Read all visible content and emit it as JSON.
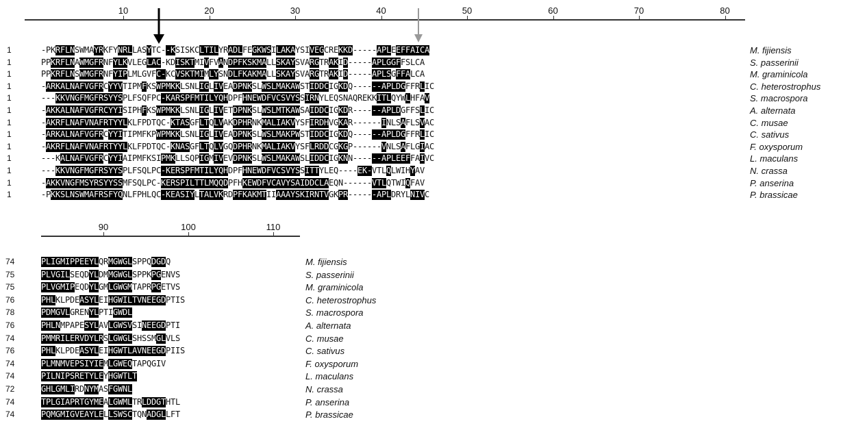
{
  "block1": {
    "ticks": [
      "10",
      "20",
      "30",
      "40",
      "50",
      "60",
      "70",
      "80"
    ],
    "rows": [
      {
        "num": "1",
        "seq": "-PKRFLNSWMAYRKFYNRLLASYTC--KSISKCLTILYRADLFEGKWSILAKAYSIVEGCREKKD-----APLEEFFAICA",
        "hl": [
          3,
          4,
          5,
          6,
          11,
          12,
          16,
          17,
          18,
          22,
          26,
          27,
          33,
          34,
          35,
          36,
          39,
          40,
          41,
          44,
          45,
          46,
          47,
          49,
          50,
          51,
          52,
          56,
          57,
          58,
          62,
          63,
          64,
          70,
          71,
          72,
          74,
          75,
          76,
          77,
          78,
          79,
          80
        ],
        "species": "M. fijiensis"
      },
      {
        "num": "1",
        "seq": "PPKRFLNAWMGFRNFYLKVLEGLAC-KDISKTMIVFVANDPFKSKMALLSKAYSVARGTRAKID-----APLGGFFSLCA",
        "hl": [
          2,
          3,
          4,
          5,
          6,
          8,
          9,
          10,
          11,
          12,
          15,
          16,
          17,
          22,
          23,
          24,
          28,
          29,
          30,
          31,
          34,
          37,
          39,
          40,
          41,
          42,
          43,
          44,
          45,
          46,
          49,
          50,
          51,
          52,
          56,
          57,
          60,
          61,
          63,
          69,
          70,
          71,
          72,
          73,
          74
        ],
        "species": "S. passerinii"
      },
      {
        "num": "1",
        "seq": "PPKRFLNSWMGFRNFYIPLMLGVFC-KCVSKTMIMLYSNDLFKAKMALLSKAYSVARGTRAKID-----APLSGFFALCA",
        "hl": [
          2,
          3,
          4,
          5,
          6,
          8,
          9,
          10,
          11,
          12,
          15,
          16,
          17,
          24,
          25,
          28,
          29,
          30,
          31,
          32,
          33,
          35,
          36,
          39,
          40,
          41,
          42,
          43,
          44,
          45,
          46,
          49,
          50,
          51,
          52,
          56,
          57,
          60,
          61,
          63,
          69,
          70,
          71,
          72,
          74,
          75,
          76
        ],
        "species": "M. graminicola"
      },
      {
        "num": "1",
        "seq": "-ARKALNAFVGFRCYYVTIPMFKSWPMKKLSNLIGLIVEADPNKSLWSLMAKAWSTIDDCIGKDQ------APLDGFFRLIC",
        "hl": [
          1,
          2,
          3,
          4,
          5,
          6,
          7,
          8,
          9,
          10,
          11,
          12,
          14,
          15,
          16,
          21,
          24,
          25,
          26,
          27,
          28,
          33,
          34,
          36,
          37,
          40,
          41,
          42,
          43,
          46,
          47,
          48,
          49,
          50,
          51,
          52,
          53,
          56,
          57,
          58,
          59,
          62,
          63,
          69,
          70,
          71,
          72,
          73,
          74,
          75,
          79
        ],
        "species": "C. heterostrophus"
      },
      {
        "num": "1",
        "seq": "---KKVNGFMGFRSYYSPLFSQFPC-KARSPFMTILYQHDPFHNEWDFVCSVYSSIRNYLEQSNAQREKKITLQYWLHFAV",
        "hl": [
          3,
          4,
          5,
          6,
          7,
          8,
          9,
          10,
          11,
          12,
          13,
          14,
          15,
          16,
          25,
          26,
          27,
          28,
          29,
          30,
          31,
          32,
          33,
          34,
          35,
          36,
          37,
          38,
          42,
          43,
          44,
          45,
          46,
          47,
          48,
          49,
          50,
          51,
          52,
          53,
          55,
          56,
          57,
          70,
          71,
          72,
          76,
          80
        ],
        "species": "S. macrospora"
      },
      {
        "num": "1",
        "seq": "-AKKALNAFVGFRCYYISIPHFKSWPMKKLSNLIGLIVETDPNKSLWSLMTKAWSAIDDCIGKDR------APLDGFFSLIC",
        "hl": [
          1,
          2,
          3,
          4,
          5,
          6,
          7,
          8,
          9,
          10,
          11,
          12,
          13,
          14,
          15,
          16,
          21,
          24,
          25,
          26,
          27,
          28,
          33,
          34,
          36,
          37,
          40,
          41,
          42,
          43,
          46,
          47,
          48,
          49,
          50,
          51,
          52,
          53,
          56,
          57,
          58,
          59,
          62,
          63,
          69,
          70,
          71,
          72,
          73,
          74,
          79
        ],
        "species": "A. alternata"
      },
      {
        "num": "1",
        "seq": "-AKRFLNAFVNAFRTYYLKLFPDTQC-KTASGFLTQLVAKDPHRNKMALIAKVYSFIRDHVGKAR------INLSAFLSVAC",
        "hl": [
          1,
          2,
          3,
          4,
          5,
          6,
          7,
          8,
          9,
          10,
          11,
          12,
          13,
          14,
          15,
          16,
          17,
          27,
          28,
          29,
          30,
          33,
          34,
          36,
          37,
          40,
          41,
          42,
          43,
          46,
          47,
          48,
          49,
          50,
          51,
          52,
          56,
          57,
          58,
          59,
          62,
          63,
          71,
          75,
          79
        ],
        "species": "C. musae"
      },
      {
        "num": "1",
        "seq": "-ARKALNAFVGFRCYYITIPMFKPWPMKKLSNLIGLIVEADPNKSLWSLMAKPWSTIDDCIGKDQ------APLDGFFRLIC",
        "hl": [
          1,
          2,
          3,
          4,
          5,
          6,
          7,
          8,
          9,
          10,
          11,
          12,
          14,
          15,
          16,
          24,
          25,
          26,
          27,
          28,
          33,
          34,
          36,
          37,
          40,
          41,
          42,
          43,
          46,
          47,
          48,
          49,
          50,
          51,
          52,
          53,
          56,
          57,
          58,
          59,
          62,
          63,
          69,
          70,
          71,
          72,
          73,
          74,
          75,
          79
        ],
        "species": "C. sativus"
      },
      {
        "num": "1",
        "seq": "-AKRFLNAFVNAFRTYYLKLFPDTQC-KNASGFLTQLVGQDPHRNKMALIAKVYSFLRDDCGKGP------VNLSAFLGIAC",
        "hl": [
          1,
          2,
          3,
          4,
          5,
          6,
          7,
          8,
          9,
          10,
          11,
          12,
          13,
          14,
          15,
          16,
          17,
          27,
          28,
          29,
          30,
          33,
          34,
          36,
          37,
          40,
          41,
          42,
          43,
          46,
          47,
          48,
          49,
          50,
          51,
          52,
          56,
          57,
          58,
          59,
          62,
          63,
          71,
          75,
          79
        ],
        "species": "F. oxysporum"
      },
      {
        "num": "1",
        "seq": "---KALNAFVGFRCYYIAIPMFKSIPMKLLSQPIGMIVEVDPNKSLWSLMAKAWSLIDDCIGKNN------APLEEFFAIVC",
        "hl": [
          4,
          5,
          6,
          7,
          8,
          9,
          10,
          11,
          12,
          14,
          15,
          16,
          25,
          26,
          27,
          33,
          34,
          36,
          37,
          40,
          41,
          42,
          43,
          46,
          47,
          48,
          49,
          50,
          51,
          52,
          53,
          56,
          57,
          58,
          59,
          62,
          63,
          69,
          70,
          71,
          72,
          73,
          74,
          75,
          76,
          79
        ],
        "species": "L. maculans"
      },
      {
        "num": "1",
        "seq": "---KKVNGFMGFRSYYSPLFSQLPC-KERSPFMTILYQHDPFHNEWDFVCSVYSSITTYLEQ----EK-VTLQLWIHYAV",
        "hl": [
          3,
          4,
          5,
          6,
          7,
          8,
          9,
          10,
          11,
          12,
          13,
          14,
          15,
          16,
          25,
          26,
          27,
          28,
          29,
          30,
          31,
          32,
          33,
          34,
          35,
          36,
          37,
          38,
          42,
          43,
          44,
          45,
          46,
          47,
          48,
          49,
          50,
          51,
          52,
          53,
          55,
          56,
          57,
          66,
          67,
          68,
          72,
          77
        ],
        "species": "N. crassa"
      },
      {
        "num": "1",
        "seq": "-AKKVNGFMSYRSYYSSMFSQLPC-KERSPILTTLMQQDPFHKEWDFVCAVYSAIDDCLAEQN------VTLQTWIQFAV",
        "hl": [
          1,
          2,
          3,
          4,
          5,
          6,
          7,
          8,
          9,
          10,
          11,
          12,
          13,
          14,
          15,
          16,
          25,
          26,
          27,
          28,
          29,
          30,
          31,
          32,
          33,
          34,
          35,
          36,
          37,
          38,
          42,
          43,
          44,
          45,
          46,
          47,
          48,
          49,
          50,
          51,
          52,
          53,
          54,
          55,
          56,
          57,
          58,
          59,
          69,
          70,
          71,
          76
        ],
        "species": "P. anserina"
      },
      {
        "num": "1",
        "seq": "-PKKSLNSWMAFRSFYQNLFPHLQC-KEASIYLTALVKRDPFKAKMTIIAAAYSKIRNTVGKPR------APLDRYLNIVC",
        "hl": [
          2,
          3,
          4,
          5,
          6,
          7,
          8,
          9,
          10,
          11,
          12,
          13,
          14,
          15,
          16,
          25,
          26,
          27,
          28,
          29,
          30,
          31,
          33,
          34,
          35,
          36,
          37,
          40,
          41,
          42,
          43,
          44,
          45,
          46,
          49,
          50,
          51,
          52,
          53,
          54,
          55,
          56,
          57,
          58,
          59,
          62,
          63,
          69,
          70,
          71,
          72,
          77,
          78,
          79
        ],
        "species": "P. brassicae"
      }
    ]
  },
  "block2": {
    "ticks": [
      "90",
      "100",
      "110"
    ],
    "rows": [
      {
        "num": "74",
        "seq": "PLIGMIPPEEYLQRMGWGLSPPQDGDQ",
        "hl": [
          0,
          1,
          2,
          3,
          4,
          5,
          6,
          7,
          8,
          9,
          10,
          11,
          14,
          15,
          16,
          17,
          18,
          23,
          24,
          25
        ],
        "species": "M. fijiensis"
      },
      {
        "num": "75",
        "seq": "PLVGILSEQDYLDMMGWGLSPPKPGENVS",
        "hl": [
          0,
          1,
          2,
          3,
          4,
          5,
          10,
          11,
          14,
          15,
          16,
          17,
          18,
          23,
          24
        ],
        "species": "S. passerinii"
      },
      {
        "num": "75",
        "seq": "PLVGMIPEQDYLGMLGWGMTAPRPGETVS",
        "hl": [
          0,
          1,
          2,
          3,
          4,
          5,
          6,
          10,
          11,
          14,
          15,
          16,
          17,
          18,
          23,
          24
        ],
        "species": "M. graminicola"
      },
      {
        "num": "76",
        "seq": "PHLKLPDEASYLEIHGWILTVNEEGDPTIS",
        "hl": [
          0,
          1,
          2,
          8,
          9,
          10,
          11,
          14,
          15,
          16,
          17,
          18,
          19,
          20,
          21,
          22,
          23,
          24,
          25
        ],
        "species": "C. heterostrophus"
      },
      {
        "num": "78",
        "seq": "PDMGVLGRENYLPTIGWDL",
        "hl": [
          0,
          1,
          2,
          3,
          4,
          5,
          10,
          11,
          15,
          16,
          17,
          18
        ],
        "species": "S. macrospora"
      },
      {
        "num": "76",
        "seq": "PHLNMPAPESYLAVLGWSVSINEEGDPTI",
        "hl": [
          0,
          1,
          2,
          3,
          9,
          10,
          11,
          14,
          15,
          16,
          17,
          18,
          21,
          22,
          23,
          24,
          25
        ],
        "species": "A. alternata"
      },
      {
        "num": "74",
        "seq": "PMMRILERVDYLRSLGWGLSHSSMGLVLS",
        "hl": [
          0,
          1,
          2,
          3,
          4,
          5,
          6,
          7,
          8,
          9,
          10,
          11,
          12,
          14,
          15,
          16,
          17,
          18,
          24,
          25
        ],
        "species": "C. musae"
      },
      {
        "num": "76",
        "seq": "PHLKLPDEASYLEIHGWTLAVNEEGDPIIS",
        "hl": [
          0,
          1,
          2,
          8,
          9,
          10,
          11,
          14,
          15,
          16,
          17,
          18,
          19,
          20,
          21,
          22,
          23,
          24,
          25
        ],
        "species": "C. sativus"
      },
      {
        "num": "74",
        "seq": "PLMNMVEPSIYIEMLGWEQTAPQGIV",
        "hl": [
          0,
          1,
          2,
          3,
          4,
          5,
          6,
          7,
          8,
          9,
          10,
          11,
          12,
          14,
          15,
          16,
          17,
          18
        ],
        "species": "F. oxysporum"
      },
      {
        "num": "74",
        "seq": "PILNIPSRETYLEYHGWTLT",
        "hl": [
          0,
          1,
          2,
          3,
          4,
          5,
          6,
          7,
          8,
          9,
          10,
          11,
          12,
          14,
          15,
          16,
          17,
          18,
          19
        ],
        "species": "L. maculans"
      },
      {
        "num": "72",
        "seq": "GHLGMLIRDNYMASFGWNL",
        "hl": [
          0,
          1,
          2,
          3,
          4,
          5,
          6,
          9,
          10,
          11,
          14,
          15,
          16,
          17,
          18
        ],
        "species": "N. crassa"
      },
      {
        "num": "74",
        "seq": "TPLGIAPRTGYMEALGWMLTRLDDGTHTL",
        "hl": [
          0,
          1,
          2,
          3,
          4,
          5,
          6,
          7,
          8,
          9,
          10,
          11,
          12,
          14,
          15,
          16,
          17,
          18,
          21,
          22,
          23,
          24,
          25
        ],
        "species": "P. anserina"
      },
      {
        "num": "74",
        "seq": "PQMGMIGVEAYLELLSWSCTQNADGLLFT",
        "hl": [
          0,
          1,
          2,
          3,
          4,
          5,
          6,
          7,
          8,
          9,
          10,
          11,
          12,
          14,
          15,
          16,
          17,
          18,
          22,
          23,
          24,
          25
        ],
        "species": "P. brassicae"
      }
    ]
  },
  "arrows": [
    {
      "name": "black-arrow",
      "color": "#000000"
    },
    {
      "name": "gray-arrow",
      "color": "#999999"
    }
  ]
}
